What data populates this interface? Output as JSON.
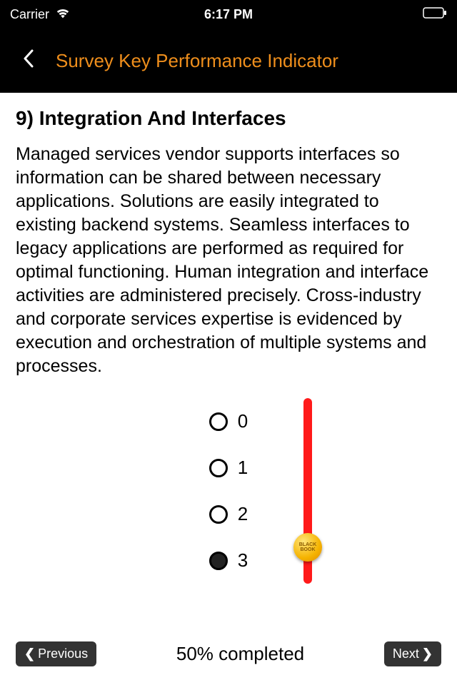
{
  "status": {
    "carrier": "Carrier",
    "time": "6:17 PM"
  },
  "nav": {
    "title": "Survey Key Performance Indicator"
  },
  "question": {
    "number": "9",
    "title": "Integration And Interfaces",
    "body": "Managed services vendor supports interfaces so information can be shared between necessary applications. Solutions are easily integrated to existing backend systems. Seamless interfaces to legacy applications are performed as required for optimal functioning. Human integration and interface activities are administered precisely. Cross-industry and corporate services expertise is evidenced by execution and orchestration of multiple systems and processes."
  },
  "options": [
    "0",
    "1",
    "2",
    "3"
  ],
  "selected_index": 3,
  "slider": {
    "track_color": "#ff1a1a",
    "thumb_position_percent": 86,
    "thumb_label": "BLACK BOOK"
  },
  "footer": {
    "prev": "Previous",
    "next": "Next",
    "progress": "50% completed"
  },
  "colors": {
    "accent": "#ee8e1c",
    "header_bg": "#000000"
  }
}
